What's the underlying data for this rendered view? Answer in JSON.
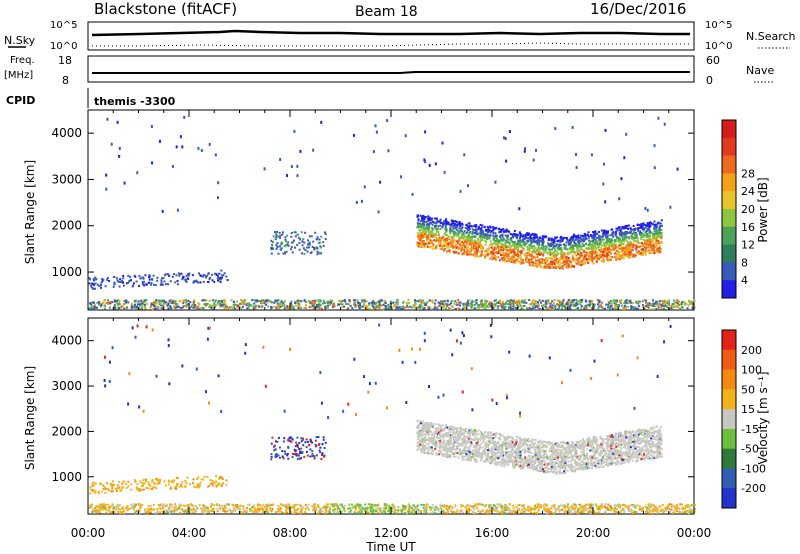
{
  "header": {
    "site": "Blackstone (fitACF)",
    "beam": "Beam 18",
    "date": "16/Dec/2016"
  },
  "small_panels": {
    "nsky_label": "N.Sky",
    "nsky_top": "10^5",
    "nsky_bottom": "10^0",
    "nsearch_label": "N.Search",
    "nsearch_top": "10^5",
    "nsearch_bottom": "10^0",
    "freq_label_1": "Freq.",
    "freq_label_2": "[MHz]",
    "freq_top": "18",
    "freq_bottom": "8",
    "nave_label": "Nave",
    "nave_top": "60",
    "nave_bottom": "0",
    "cpid_label": "CPID",
    "cpid_value": "themis -3300"
  },
  "chart_data": [
    {
      "type": "heatmap",
      "name": "power",
      "ylabel": "Slant Range [km]",
      "xlabel": "",
      "yticks": [
        1000,
        2000,
        3000,
        4000
      ],
      "ylim": [
        180,
        4500
      ],
      "xlim": [
        0,
        24
      ],
      "colorbar": {
        "label": "Power [dB]",
        "tick_labels": [
          "4",
          "8",
          "12",
          "16",
          "20",
          "24",
          "28"
        ],
        "colors": [
          "#1f20e6",
          "#3a5bb5",
          "#2e7d5c",
          "#4aa357",
          "#8cc63e",
          "#e8c52a",
          "#f4a11c",
          "#ee6a1f",
          "#e33a1f",
          "#d61b1b"
        ]
      },
      "regions": [
        {
          "t0": 13.0,
          "t1": 22.7,
          "level": "medium-high",
          "note": "main echo band"
        },
        {
          "t0": 0.0,
          "t1": 24.0,
          "level": "low-mixed",
          "note": "near-range clutter"
        }
      ]
    },
    {
      "type": "heatmap",
      "name": "velocity",
      "ylabel": "Slant Range [km]",
      "xlabel": "Time UT",
      "xticks": [
        "00:00",
        "04:00",
        "08:00",
        "12:00",
        "16:00",
        "20:00",
        "00:00"
      ],
      "yticks": [
        1000,
        2000,
        3000,
        4000
      ],
      "ylim": [
        180,
        4500
      ],
      "xlim": [
        0,
        24
      ],
      "colorbar": {
        "label": "Velocity [m s⁻¹]",
        "tick_labels": [
          "200",
          "100",
          "50",
          "15",
          "-15",
          "-50",
          "-100",
          "-200"
        ],
        "colors": [
          "#2233c9",
          "#2e5fb0",
          "#2d7a3b",
          "#6cc040",
          "#c8c8c0",
          "#f2b31a",
          "#f58a12",
          "#ef5b12",
          "#e1231a"
        ]
      },
      "regions": [
        {
          "t0": 13.0,
          "t1": 22.7,
          "level": "ground-scatter (grey)"
        },
        {
          "t0": 0.0,
          "t1": 13.0,
          "level": "negative velocities (orange) near range"
        }
      ]
    }
  ]
}
